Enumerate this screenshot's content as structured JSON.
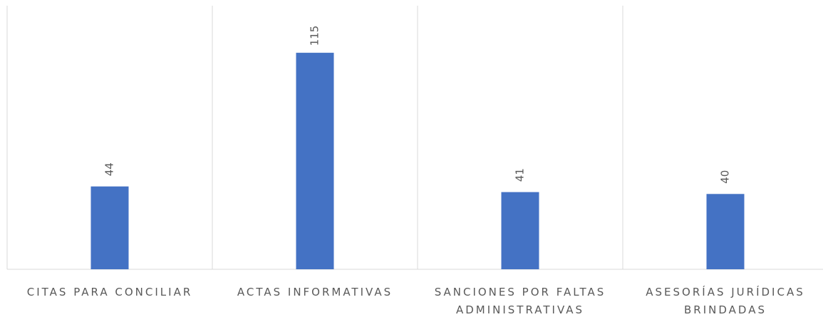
{
  "chart_data": {
    "type": "bar",
    "categories": [
      "CITAS PARA CONCILIAR",
      "ACTAS INFORMATIVAS",
      "SANCIONES POR FALTAS ADMINISTRATIVAS",
      "ASESORÍAS JURÍDICAS BRINDADAS"
    ],
    "values": [
      44,
      115,
      41,
      40
    ],
    "color": "#4472c4",
    "ylim": [
      0,
      140
    ]
  }
}
